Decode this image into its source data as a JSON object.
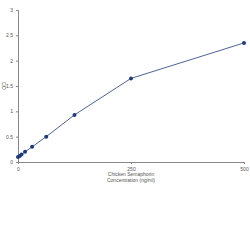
{
  "chart_data": {
    "type": "line",
    "x_label": [
      "Chicken Semaphorin",
      "Concentration (ng/ml)"
    ],
    "y_label": "OD",
    "x": [
      0,
      3.9,
      7.8,
      15.6,
      31.25,
      62.5,
      125,
      250,
      500
    ],
    "values": [
      0.1,
      0.12,
      0.15,
      0.2,
      0.3,
      0.5,
      0.93,
      1.65,
      2.35
    ],
    "color": "#1f3a7a",
    "marker": "circle",
    "xlim": [
      0,
      500
    ],
    "xticks": [
      0,
      250,
      500
    ],
    "ylim": [
      0,
      3
    ],
    "yticks": [
      0,
      0.5,
      1,
      1.5,
      2,
      2.5,
      3
    ],
    "grid": false
  }
}
